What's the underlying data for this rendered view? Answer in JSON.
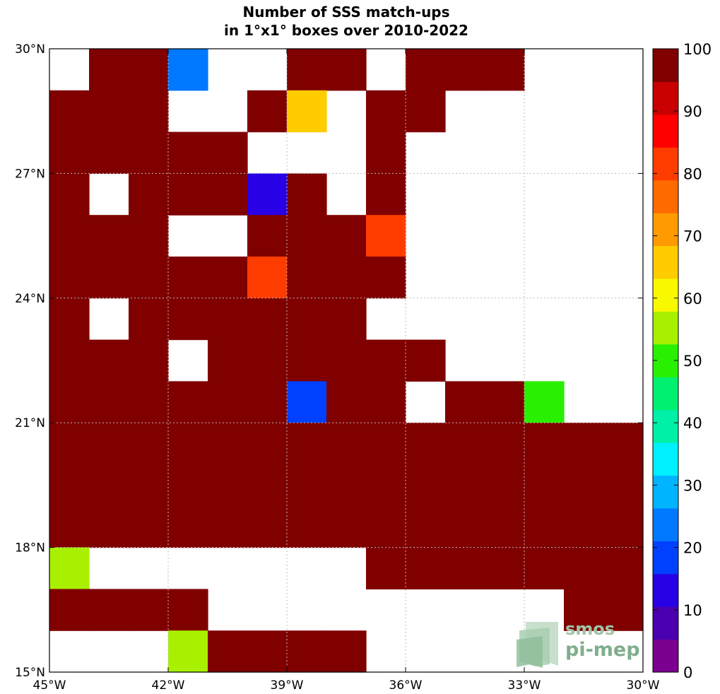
{
  "chart_data": {
    "type": "heatmap",
    "title_lines": [
      "Number of SSS match-ups",
      "in 1°x1° boxes over 2010-2022"
    ],
    "x_range": [
      -45,
      -30
    ],
    "y_range": [
      15,
      30
    ],
    "x_ticks": [
      {
        "value": -45,
        "label": "45°W"
      },
      {
        "value": -42,
        "label": "42°W"
      },
      {
        "value": -39,
        "label": "39°W"
      },
      {
        "value": -36,
        "label": "36°W"
      },
      {
        "value": -33,
        "label": "33°W"
      },
      {
        "value": -30,
        "label": "30°W"
      }
    ],
    "y_ticks": [
      {
        "value": 15,
        "label": "15°N"
      },
      {
        "value": 18,
        "label": "18°N"
      },
      {
        "value": 21,
        "label": "21°N"
      },
      {
        "value": 24,
        "label": "24°N"
      },
      {
        "value": 27,
        "label": "27°N"
      },
      {
        "value": 30,
        "label": "30°N"
      }
    ],
    "grid": true,
    "colorbar": {
      "range": [
        0,
        100
      ],
      "ticks": [
        "0",
        "10",
        "20",
        "30",
        "40",
        "50",
        "60",
        "70",
        "80",
        "90",
        "100"
      ],
      "colors": [
        "#7b0090",
        "#4b00b0",
        "#2800e6",
        "#0040ff",
        "#0078ff",
        "#00b4ff",
        "#00f0ff",
        "#00f0a8",
        "#00f070",
        "#28f000",
        "#a8f000",
        "#f8f800",
        "#ffcc00",
        "#ff9a00",
        "#ff6a00",
        "#ff3c00",
        "#ff0000",
        "#c80000",
        "#800000"
      ]
    },
    "grid_columns_lon_west_edge": [
      -45,
      -44,
      -43,
      -42,
      -41,
      -40,
      -39,
      -38,
      -37,
      -36,
      -35,
      -34,
      -33,
      -32,
      -31
    ],
    "grid_rows_lat_north_edge": [
      30,
      29,
      28,
      27,
      26,
      25,
      24,
      23,
      22,
      21,
      20,
      19,
      18,
      17,
      16
    ],
    "values": [
      [
        null,
        100,
        100,
        22,
        null,
        null,
        100,
        100,
        null,
        100,
        100,
        100,
        null,
        null,
        null
      ],
      [
        100,
        100,
        100,
        null,
        null,
        100,
        68,
        null,
        100,
        100,
        null,
        null,
        null,
        null,
        null
      ],
      [
        100,
        100,
        100,
        100,
        100,
        null,
        null,
        null,
        100,
        null,
        null,
        null,
        null,
        null,
        null
      ],
      [
        100,
        null,
        100,
        100,
        100,
        12,
        100,
        null,
        100,
        null,
        null,
        null,
        null,
        null,
        null
      ],
      [
        100,
        100,
        100,
        null,
        null,
        100,
        100,
        100,
        82,
        null,
        null,
        null,
        null,
        null,
        null
      ],
      [
        100,
        100,
        100,
        100,
        100,
        82,
        100,
        100,
        100,
        null,
        null,
        null,
        null,
        null,
        null
      ],
      [
        100,
        null,
        100,
        100,
        100,
        100,
        100,
        100,
        null,
        null,
        null,
        null,
        null,
        null,
        null
      ],
      [
        100,
        100,
        100,
        null,
        100,
        100,
        100,
        100,
        100,
        100,
        null,
        null,
        null,
        null,
        null
      ],
      [
        100,
        100,
        100,
        100,
        100,
        100,
        18,
        100,
        100,
        null,
        100,
        100,
        48,
        null,
        null
      ],
      [
        100,
        100,
        100,
        100,
        100,
        100,
        100,
        100,
        100,
        100,
        100,
        100,
        100,
        100,
        100
      ],
      [
        100,
        100,
        100,
        100,
        100,
        100,
        100,
        100,
        100,
        100,
        100,
        100,
        100,
        100,
        100
      ],
      [
        100,
        100,
        100,
        100,
        100,
        100,
        100,
        100,
        100,
        100,
        100,
        100,
        100,
        100,
        100
      ],
      [
        57,
        null,
        null,
        null,
        null,
        null,
        null,
        null,
        100,
        100,
        100,
        100,
        100,
        100,
        100
      ],
      [
        100,
        100,
        100,
        100,
        null,
        null,
        null,
        null,
        null,
        null,
        null,
        null,
        null,
        100,
        100
      ],
      [
        null,
        null,
        null,
        57,
        100,
        100,
        100,
        100,
        null,
        null,
        null,
        null,
        null,
        null,
        null
      ]
    ]
  },
  "logo": {
    "line1": "smos",
    "line2": "pi-mep"
  }
}
